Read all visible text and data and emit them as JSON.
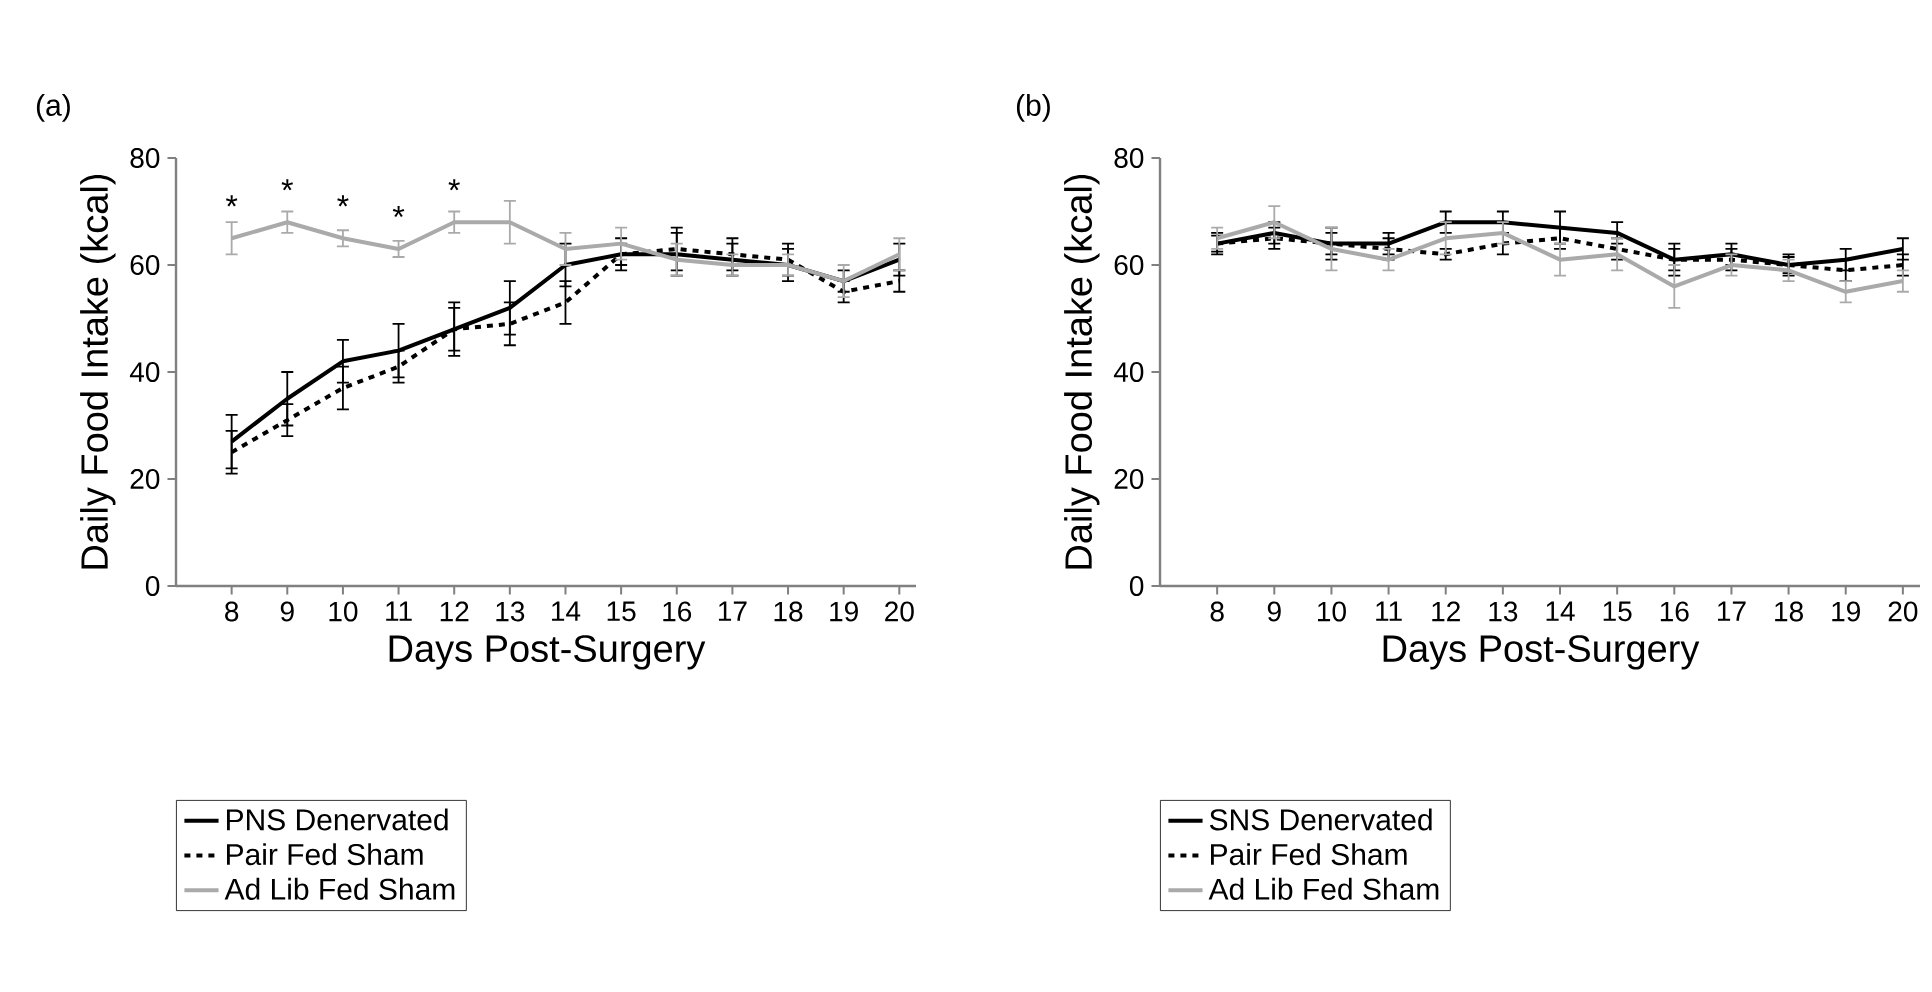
{
  "chart_data": [
    {
      "type": "line",
      "title": "(a)",
      "xlabel": "Days Post-Surgery",
      "ylabel": "Daily Food Intake (kcal)",
      "x": [
        8,
        9,
        10,
        11,
        12,
        13,
        14,
        15,
        16,
        17,
        18,
        19,
        20
      ],
      "xlim": [
        7,
        20.3
      ],
      "xticks": [
        8,
        9,
        10,
        11,
        12,
        13,
        14,
        15,
        16,
        17,
        18,
        19,
        20
      ],
      "ylim": [
        0,
        80
      ],
      "yticks": [
        0,
        20,
        40,
        60,
        80
      ],
      "grid": false,
      "legend": "bottom",
      "series": [
        {
          "name": "PNS Denervated",
          "color": "#000000",
          "line_style": "solid",
          "values": [
            27,
            35,
            42,
            44,
            48,
            52,
            60,
            62,
            62,
            61,
            60,
            57,
            61
          ],
          "errors": [
            5,
            5,
            4,
            5,
            5,
            5,
            4,
            3,
            4,
            3,
            3,
            2,
            3
          ]
        },
        {
          "name": "Pair Fed Sham",
          "color": "#000000",
          "line_style": "dashed",
          "values": [
            25,
            31,
            37,
            41,
            48,
            49,
            53,
            62,
            63,
            62,
            61,
            55,
            57
          ],
          "errors": [
            4,
            3,
            4,
            3,
            4,
            4,
            4,
            2,
            4,
            3,
            3,
            2,
            2
          ]
        },
        {
          "name": "Ad Lib Fed Sham",
          "color": "#aaaaaa",
          "line_style": "solid",
          "values": [
            65,
            68,
            65,
            63,
            68,
            68,
            63,
            64,
            61,
            60,
            60,
            57,
            62
          ],
          "errors": [
            3,
            2,
            1.5,
            1.5,
            2,
            4,
            3,
            3,
            3,
            2,
            2,
            3,
            3
          ]
        }
      ],
      "annotations": [
        {
          "text": "*",
          "x": 8,
          "y": 65
        },
        {
          "text": "*",
          "x": 9,
          "y": 68
        },
        {
          "text": "*",
          "x": 10,
          "y": 65
        },
        {
          "text": "*",
          "x": 11,
          "y": 63
        },
        {
          "text": "*",
          "x": 12,
          "y": 68
        }
      ]
    },
    {
      "type": "line",
      "title": "(b)",
      "xlabel": "Days Post-Surgery",
      "ylabel": "Daily Food Intake (kcal)",
      "x": [
        8,
        9,
        10,
        11,
        12,
        13,
        14,
        15,
        16,
        17,
        18,
        19,
        20
      ],
      "xlim": [
        7,
        20.3
      ],
      "xticks": [
        8,
        9,
        10,
        11,
        12,
        13,
        14,
        15,
        16,
        17,
        18,
        19,
        20
      ],
      "ylim": [
        0,
        80
      ],
      "yticks": [
        0,
        20,
        40,
        60,
        80
      ],
      "grid": false,
      "legend": "bottom",
      "series": [
        {
          "name": "SNS Denervated",
          "color": "#000000",
          "line_style": "solid",
          "values": [
            64,
            66,
            64,
            64,
            68,
            68,
            67,
            66,
            61,
            62,
            60,
            61,
            63
          ],
          "errors": [
            2,
            2,
            3,
            2,
            2,
            2,
            3,
            2,
            3,
            2,
            2,
            2,
            2
          ]
        },
        {
          "name": "Pair Fed Sham",
          "color": "#000000",
          "line_style": "dashed",
          "values": [
            64,
            65,
            64,
            63,
            62,
            64,
            65,
            63,
            61,
            61,
            60,
            59,
            60
          ],
          "errors": [
            1.5,
            2,
            2,
            2,
            1,
            2,
            2,
            2,
            2,
            2,
            1.5,
            2,
            2
          ]
        },
        {
          "name": "Ad Lib Fed Sham",
          "color": "#aaaaaa",
          "line_style": "solid",
          "values": [
            65,
            68,
            63,
            61,
            65,
            66,
            61,
            62,
            56,
            60,
            59,
            55,
            57
          ],
          "errors": [
            2,
            3,
            4,
            2,
            3,
            2,
            3,
            3,
            4,
            2,
            2,
            2,
            2
          ]
        }
      ]
    }
  ]
}
